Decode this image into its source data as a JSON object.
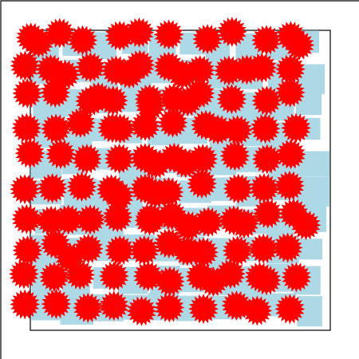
{
  "colors": {
    "background": "#ffffff",
    "frame_stroke": "#000000",
    "tile_fill": "#add8e6",
    "star_fill": "#ff0000"
  },
  "tile_seed": 17,
  "star_seed": 29
}
